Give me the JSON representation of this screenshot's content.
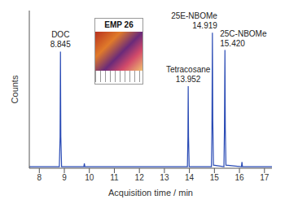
{
  "chart_data": {
    "type": "line",
    "x_label": "Acquisition time / min",
    "y_label": "Counts",
    "inset_label": "EMP 26",
    "color": "#2a4bb5",
    "x": [
      7.6,
      8.8,
      8.83,
      8.845,
      8.86,
      8.89,
      9.78,
      9.8,
      9.82,
      13.92,
      13.94,
      13.952,
      13.965,
      13.99,
      14.88,
      14.9,
      14.919,
      14.935,
      14.96,
      15.38,
      15.4,
      15.42,
      15.435,
      15.46,
      16.08,
      16.1,
      16.12,
      17.3
    ],
    "values": [
      1,
      1,
      20,
      74,
      20,
      1,
      1,
      3,
      1,
      1,
      20,
      52,
      20,
      1,
      1,
      25,
      86,
      30,
      2,
      1,
      25,
      75,
      25,
      2,
      1,
      4,
      1,
      1
    ],
    "xlim": [
      7.6,
      17.3
    ],
    "xticks": [
      8,
      9,
      10,
      11,
      12,
      13,
      14,
      15,
      16,
      17
    ],
    "ylim": [
      0,
      100
    ],
    "tick_labels": "x",
    "peaks": [
      {
        "name": "DOC",
        "time": 8.845
      },
      {
        "name": "Tetracosane",
        "time": 13.952
      },
      {
        "name": "25E-NBOMe",
        "time": 14.919
      },
      {
        "name": "25C-NBOMe",
        "time": {
          "value": 15.42,
          "label": "15.420"
        }
      }
    ]
  }
}
